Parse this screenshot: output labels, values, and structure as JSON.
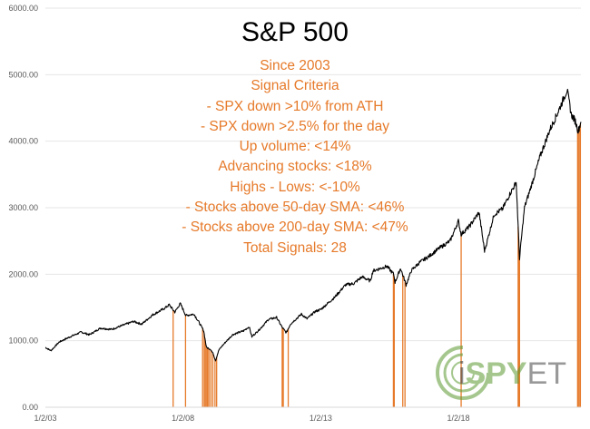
{
  "chart_data": {
    "type": "line",
    "title": "S&P 500",
    "annotation_lines": [
      "Since 2003",
      "Signal Criteria",
      "- SPX down >10% from ATH",
      "- SPX down >2.5% for the day",
      "Up volume: <14%",
      "Advancing stocks: <18%",
      "Highs - Lows: <-10%",
      "- Stocks above 50-day SMA: <46%",
      "- Stocks above 200-day SMA: <47%",
      "Total Signals: 28"
    ],
    "y_ticks": [
      "0.00",
      "1000.00",
      "2000.00",
      "3000.00",
      "4000.00",
      "5000.00",
      "6000.00"
    ],
    "ylim": [
      0,
      6000
    ],
    "x_ticks": [
      {
        "label": "1/2/03",
        "year": 2003.0
      },
      {
        "label": "1/2/08",
        "year": 2008.0
      },
      {
        "label": "1/2/13",
        "year": 2013.0
      },
      {
        "label": "1/2/18",
        "year": 2018.0
      }
    ],
    "xlim": [
      2003.0,
      2022.45
    ],
    "grid": true,
    "series": [
      {
        "color": "#000000",
        "points": [
          [
            2003.0,
            900
          ],
          [
            2003.2,
            850
          ],
          [
            2003.5,
            980
          ],
          [
            2003.9,
            1060
          ],
          [
            2004.3,
            1130
          ],
          [
            2004.6,
            1090
          ],
          [
            2005.0,
            1190
          ],
          [
            2005.4,
            1170
          ],
          [
            2005.8,
            1230
          ],
          [
            2006.2,
            1290
          ],
          [
            2006.5,
            1250
          ],
          [
            2006.9,
            1390
          ],
          [
            2007.3,
            1480
          ],
          [
            2007.5,
            1540
          ],
          [
            2007.7,
            1430
          ],
          [
            2007.9,
            1560
          ],
          [
            2008.1,
            1380
          ],
          [
            2008.4,
            1400
          ],
          [
            2008.6,
            1260
          ],
          [
            2008.75,
            1150
          ],
          [
            2008.85,
            900
          ],
          [
            2009.0,
            870
          ],
          [
            2009.1,
            800
          ],
          [
            2009.18,
            700
          ],
          [
            2009.3,
            860
          ],
          [
            2009.5,
            960
          ],
          [
            2009.8,
            1090
          ],
          [
            2010.2,
            1150
          ],
          [
            2010.4,
            1210
          ],
          [
            2010.5,
            1060
          ],
          [
            2010.8,
            1180
          ],
          [
            2011.1,
            1320
          ],
          [
            2011.4,
            1350
          ],
          [
            2011.6,
            1200
          ],
          [
            2011.75,
            1120
          ],
          [
            2011.9,
            1250
          ],
          [
            2012.3,
            1400
          ],
          [
            2012.5,
            1330
          ],
          [
            2012.8,
            1440
          ],
          [
            2013.0,
            1470
          ],
          [
            2013.5,
            1650
          ],
          [
            2013.9,
            1840
          ],
          [
            2014.2,
            1860
          ],
          [
            2014.5,
            1960
          ],
          [
            2014.8,
            1900
          ],
          [
            2014.9,
            2050
          ],
          [
            2015.4,
            2120
          ],
          [
            2015.65,
            2000
          ],
          [
            2015.7,
            1880
          ],
          [
            2015.9,
            2090
          ],
          [
            2016.1,
            1840
          ],
          [
            2016.3,
            2060
          ],
          [
            2016.6,
            2180
          ],
          [
            2016.9,
            2260
          ],
          [
            2017.3,
            2390
          ],
          [
            2017.7,
            2500
          ],
          [
            2018.0,
            2800
          ],
          [
            2018.1,
            2600
          ],
          [
            2018.4,
            2720
          ],
          [
            2018.75,
            2930
          ],
          [
            2018.95,
            2350
          ],
          [
            2019.3,
            2900
          ],
          [
            2019.6,
            2980
          ],
          [
            2019.9,
            3230
          ],
          [
            2020.1,
            3380
          ],
          [
            2020.22,
            2240
          ],
          [
            2020.4,
            3000
          ],
          [
            2020.7,
            3400
          ],
          [
            2020.95,
            3750
          ],
          [
            2021.3,
            4150
          ],
          [
            2021.6,
            4420
          ],
          [
            2021.95,
            4770
          ],
          [
            2022.1,
            4400
          ],
          [
            2022.25,
            4300
          ],
          [
            2022.35,
            4150
          ],
          [
            2022.45,
            4290
          ]
        ]
      }
    ],
    "signal_color": "#E67A2A",
    "signal_dates": [
      2007.64,
      2008.09,
      2008.71,
      2008.77,
      2008.81,
      2008.86,
      2008.89,
      2008.94,
      2009.01,
      2009.08,
      2009.16,
      2009.22,
      2011.6,
      2011.64,
      2011.82,
      2015.64,
      2015.67,
      2015.98,
      2016.06,
      2018.1,
      2020.17,
      2020.19,
      2020.21,
      2020.22,
      2022.33,
      2022.36,
      2022.41,
      2022.43
    ],
    "brand": {
      "prefix": "i",
      "name_bold": "SPY",
      "name_rest": "ETF",
      "color": "#5C9A32"
    }
  }
}
